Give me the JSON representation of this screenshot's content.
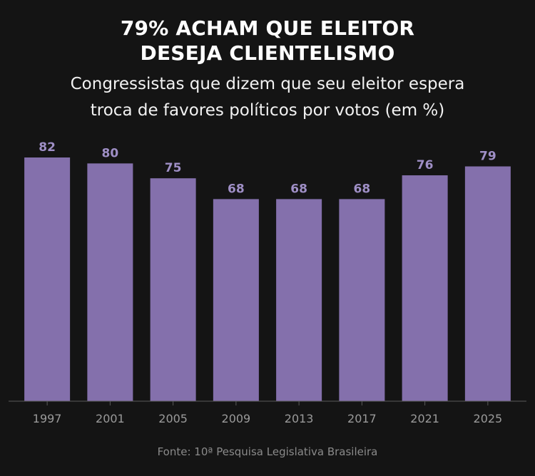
{
  "title_lines": [
    "79% ACHAM QUE ELEITOR",
    "DESEJA CLIENTELISMO"
  ],
  "subtitle_lines": [
    "Congressistas que dizem que seu eleitor espera",
    "troca de favores políticos por votos (em %)"
  ],
  "source": "Fonte: 10ª Pesquisa Legislativa Brasileira",
  "colors": {
    "background": "#141414",
    "bar": "#8470ac",
    "value_label": "#9f8fc6",
    "axis": "#5a5a5a",
    "tick_label": "#9a9a9a"
  },
  "chart_data": {
    "type": "bar",
    "categories": [
      "1997",
      "2001",
      "2005",
      "2009",
      "2013",
      "2017",
      "2021",
      "2025"
    ],
    "values": [
      82,
      80,
      75,
      68,
      68,
      68,
      76,
      79
    ],
    "title": "79% ACHAM QUE ELEITOR DESEJA CLIENTELISMO",
    "subtitle": "Congressistas que dizem que seu eleitor espera troca de favores políticos por votos (em %)",
    "xlabel": "",
    "ylabel": "",
    "ylim": [
      0,
      82
    ],
    "grid": false,
    "legend": "none",
    "data_labels": true
  }
}
